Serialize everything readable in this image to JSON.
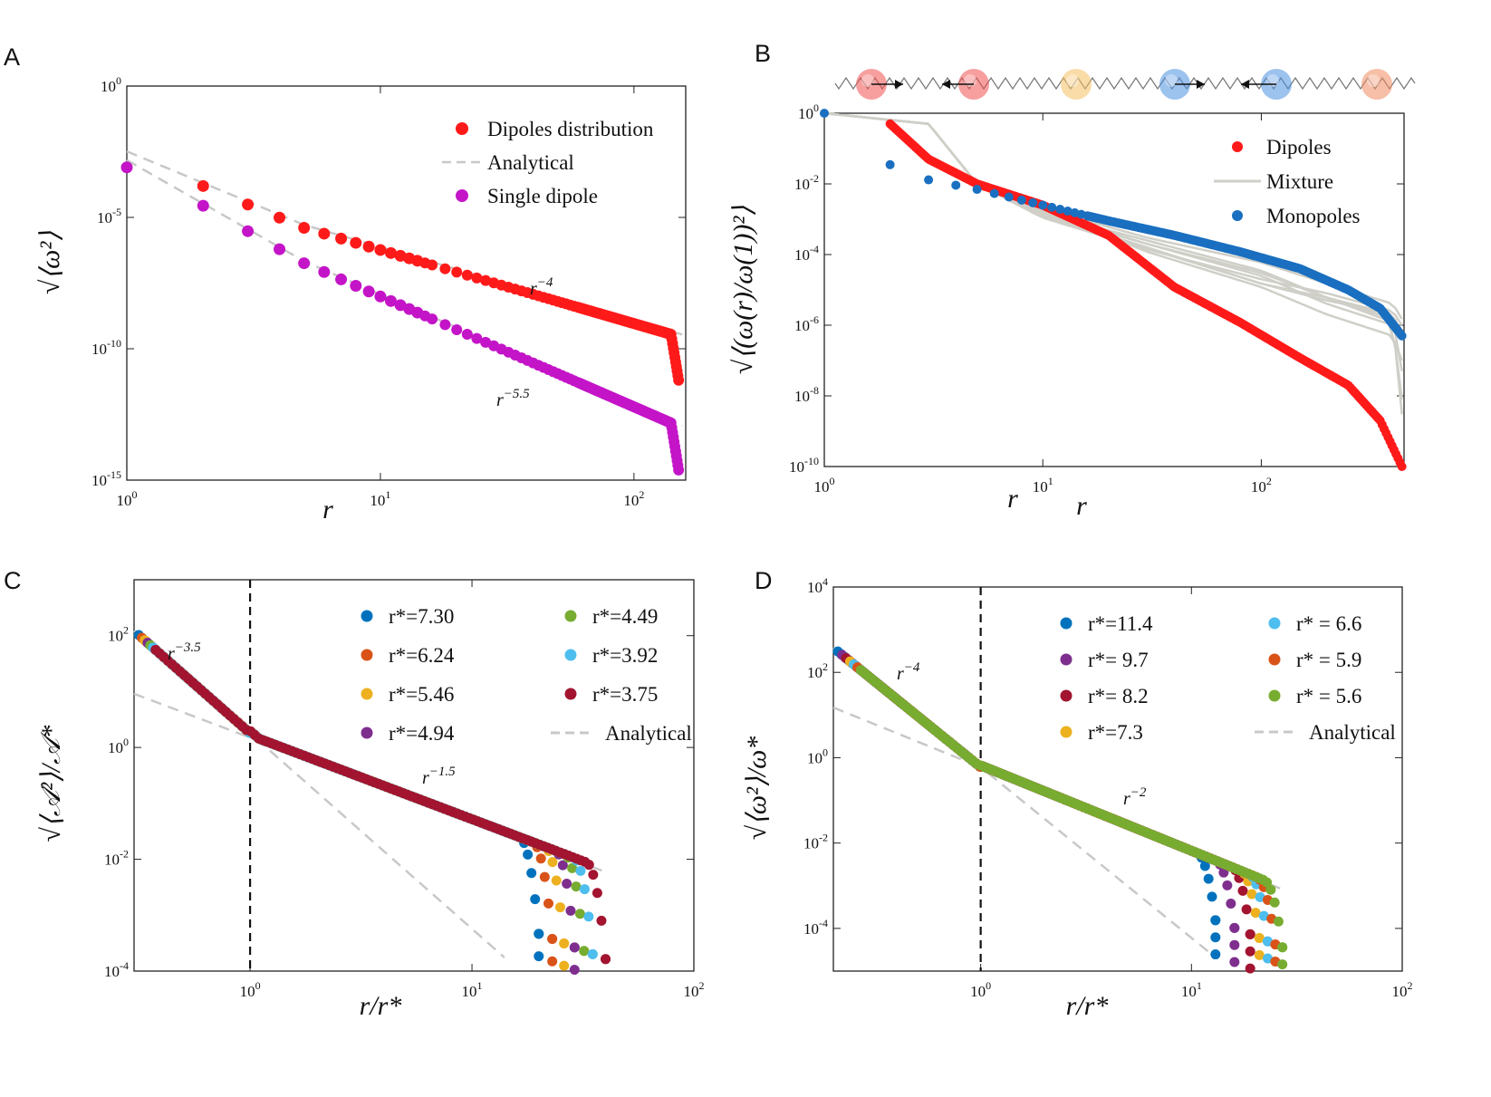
{
  "figure": {
    "panel_labels": [
      "A",
      "B",
      "C",
      "D"
    ]
  },
  "chart_data": [
    {
      "panel": "A",
      "type": "scatter",
      "title": "",
      "xlabel": "r",
      "ylabel": "√⟨ω²⟩",
      "xscale": "log",
      "yscale": "log",
      "xlim": [
        1,
        160
      ],
      "ylim": [
        1e-15,
        1
      ],
      "xticks": [
        1,
        10,
        100
      ],
      "xtick_labels": [
        "10",
        "10",
        "10"
      ],
      "xtick_exp": [
        "0",
        "1",
        "2"
      ],
      "yticks": [
        1e-15,
        1e-10,
        1e-05,
        1
      ],
      "ytick_labels": [
        "10",
        "10",
        "10",
        "10"
      ],
      "ytick_exp": [
        "-15",
        "-10",
        "-5",
        "0"
      ],
      "legend": [
        "Dipoles distribution",
        "Analytical",
        "Single dipole"
      ],
      "legend_position": "top-right",
      "annotations": [
        {
          "text": "r",
          "exp": "−4"
        },
        {
          "text": "r",
          "exp": "−5.5"
        }
      ],
      "colors": {
        "dipoles": "#ff1a1a",
        "single": "#c414c8",
        "analytical": "#c8c8c8"
      },
      "series": [
        {
          "name": "Dipoles distribution",
          "power": -4,
          "anchor_log": -2.5,
          "x_range": [
            2,
            150
          ],
          "tail_drop": 1.0
        },
        {
          "name": "Single dipole",
          "power": -5.5,
          "anchor_log": -3.1,
          "x_range": [
            2,
            150
          ],
          "tail_drop": 1.0
        },
        {
          "name": "first point",
          "x": 1,
          "y": 0.0008
        }
      ]
    },
    {
      "panel": "B",
      "type": "scatter",
      "title": "",
      "xlabel": "r",
      "ylabel": "√⟨(ω(r)/ω(1))²⟩",
      "xscale": "log",
      "yscale": "log",
      "xlim": [
        1,
        450
      ],
      "ylim": [
        1e-10,
        1
      ],
      "xticks": [
        1,
        10,
        100
      ],
      "xtick_labels": [
        "10",
        "10",
        "10"
      ],
      "xtick_exp": [
        "0",
        "1",
        "2"
      ],
      "yticks": [
        1e-10,
        1e-08,
        1e-06,
        0.0001,
        0.01,
        1
      ],
      "ytick_labels": [
        "10",
        "10",
        "10",
        "10",
        "10",
        "10"
      ],
      "ytick_exp": [
        "-10",
        "-8",
        "-6",
        "-4",
        "-2",
        "0"
      ],
      "legend": [
        "Dipoles",
        "Mixture",
        "Monopoles"
      ],
      "legend_position": "top-right",
      "colors": {
        "dipoles": "#ff1a1a",
        "mixture": "#cfcfc8",
        "monopoles": "#1a6fc0"
      },
      "series": [
        {
          "name": "Dipoles",
          "points": [
            [
              1,
              1
            ],
            [
              2,
              0.5
            ],
            [
              3,
              0.05
            ],
            [
              5,
              0.01
            ],
            [
              10,
              0.0025
            ],
            [
              20,
              0.00035
            ],
            [
              40,
              1.2e-05
            ],
            [
              80,
              1.2e-06
            ],
            [
              150,
              1.2e-07
            ],
            [
              250,
              2e-08
            ],
            [
              350,
              2e-09
            ],
            [
              440,
              1e-10
            ]
          ]
        },
        {
          "name": "Monopoles",
          "points": [
            [
              1,
              1
            ],
            [
              2,
              0.035
            ],
            [
              3,
              0.013
            ],
            [
              5,
              0.007
            ],
            [
              10,
              0.0025
            ],
            [
              20,
              0.0009
            ],
            [
              40,
              0.00035
            ],
            [
              80,
              0.00012
            ],
            [
              150,
              4e-05
            ],
            [
              250,
              1e-05
            ],
            [
              350,
              3e-06
            ],
            [
              440,
              5e-07
            ]
          ]
        },
        {
          "name": "Mixture",
          "curves": [
            [
              [
                1,
                1
              ],
              [
                3,
                0.5
              ],
              [
                5,
                0.01
              ],
              [
                10,
                0.0018
              ],
              [
                30,
                0.00012
              ],
              [
                100,
                1.2e-05
              ],
              [
                200,
                2e-06
              ],
              [
                400,
                5e-07
              ],
              [
                440,
                1e-07
              ]
            ],
            [
              [
                1,
                1
              ],
              [
                3,
                0.5
              ],
              [
                5,
                0.01
              ],
              [
                10,
                0.0016
              ],
              [
                30,
                0.0002
              ],
              [
                100,
                2.5e-05
              ],
              [
                200,
                4e-06
              ],
              [
                400,
                1e-06
              ],
              [
                440,
                8e-09
              ]
            ],
            [
              [
                1,
                1
              ],
              [
                3,
                0.5
              ],
              [
                5,
                0.01
              ],
              [
                10,
                0.0015
              ],
              [
                30,
                0.00025
              ],
              [
                100,
                3.5e-05
              ],
              [
                200,
                6e-06
              ],
              [
                400,
                1.5e-06
              ],
              [
                440,
                5e-08
              ]
            ],
            [
              [
                1,
                1
              ],
              [
                3,
                0.5
              ],
              [
                5,
                0.01
              ],
              [
                10,
                0.0013
              ],
              [
                30,
                0.00016
              ],
              [
                100,
                1.5e-05
              ],
              [
                200,
                5e-06
              ],
              [
                400,
                2e-06
              ],
              [
                440,
                4e-07
              ]
            ],
            [
              [
                1,
                1
              ],
              [
                3,
                0.5
              ],
              [
                5,
                0.01
              ],
              [
                10,
                0.0012
              ],
              [
                30,
                0.00015
              ],
              [
                100,
                1.5e-05
              ],
              [
                200,
                6e-06
              ],
              [
                400,
                1.2e-06
              ],
              [
                440,
                3e-09
              ]
            ],
            [
              [
                1,
                1
              ],
              [
                3,
                0.5
              ],
              [
                5,
                0.01
              ],
              [
                10,
                0.0011
              ],
              [
                30,
                0.00014
              ],
              [
                100,
                2e-05
              ],
              [
                200,
                8e-06
              ],
              [
                400,
                2.5e-06
              ],
              [
                440,
                1e-06
              ]
            ],
            [
              [
                1,
                1
              ],
              [
                3,
                0.5
              ],
              [
                5,
                0.01
              ],
              [
                10,
                0.0014
              ],
              [
                30,
                0.0002
              ],
              [
                100,
                3e-05
              ],
              [
                200,
                6e-06
              ],
              [
                400,
                2e-06
              ],
              [
                440,
                6e-07
              ]
            ],
            [
              [
                1,
                1
              ],
              [
                3,
                0.5
              ],
              [
                5,
                0.01
              ],
              [
                10,
                0.002
              ],
              [
                30,
                0.0003
              ],
              [
                100,
                6e-05
              ],
              [
                200,
                1.5e-05
              ],
              [
                400,
                4e-06
              ],
              [
                440,
                1.5e-06
              ]
            ]
          ]
        }
      ]
    },
    {
      "panel": "C",
      "type": "scatter",
      "title": "",
      "xlabel": "r/r*",
      "ylabel": "√⟨𝒜²⟩/𝒜*",
      "xscale": "log",
      "yscale": "log",
      "xlim": [
        0.3,
        100
      ],
      "ylim": [
        0.0001,
        1000
      ],
      "xticks": [
        1,
        10,
        100
      ],
      "xtick_labels": [
        "10",
        "10",
        "10"
      ],
      "xtick_exp": [
        "0",
        "1",
        "2"
      ],
      "yticks": [
        0.0001,
        0.01,
        1,
        100
      ],
      "ytick_labels": [
        "10",
        "10",
        "10",
        "10"
      ],
      "ytick_exp": [
        "-4",
        "-2",
        "0",
        "2"
      ],
      "vline": 1,
      "legend": [
        "r*=7.30",
        "r*=6.24",
        "r*=5.46",
        "r*=4.94",
        "r*=4.49",
        "r*=3.92",
        "r*=3.75",
        "Analytical"
      ],
      "legend_position": "top-right",
      "annotations": [
        {
          "text": "r",
          "exp": "−3.5"
        },
        {
          "text": "r",
          "exp": "−1.5"
        }
      ],
      "series": [
        {
          "name": "r*=7.30",
          "color": "#0072bd",
          "cutoff": 20
        },
        {
          "name": "r*=6.24",
          "color": "#d95319",
          "cutoff": 23
        },
        {
          "name": "r*=5.46",
          "color": "#edb120",
          "cutoff": 26
        },
        {
          "name": "r*=4.94",
          "color": "#7e2f8e",
          "cutoff": 29
        },
        {
          "name": "r*=4.49",
          "color": "#77ac30",
          "cutoff": 32
        },
        {
          "name": "r*=3.92",
          "color": "#4dbeee",
          "cutoff": 35
        },
        {
          "name": "r*=3.75",
          "color": "#a2142f",
          "cutoff": 40
        }
      ],
      "inner_power": -3.5,
      "outer_power": -1.5
    },
    {
      "panel": "D",
      "type": "scatter",
      "title": "",
      "xlabel": "r/r*",
      "ylabel": "√⟨ω²⟩/ω*",
      "xscale": "log",
      "yscale": "log",
      "xlim": [
        0.2,
        100
      ],
      "ylim": [
        1e-05,
        10000
      ],
      "xticks": [
        1,
        10,
        100
      ],
      "xtick_labels": [
        "10",
        "10",
        "10"
      ],
      "xtick_exp": [
        "0",
        "1",
        "2"
      ],
      "yticks": [
        0.0001,
        0.01,
        1,
        100,
        10000
      ],
      "ytick_labels": [
        "10",
        "10",
        "10",
        "10",
        "10"
      ],
      "ytick_exp": [
        "-4",
        "-2",
        "0",
        "2",
        "4"
      ],
      "vline": 1,
      "legend": [
        "r*=11.4",
        "r*= 9.7",
        "r*= 8.2",
        "r*=7.3",
        "r* = 6.6",
        "r* = 5.9",
        "r* = 5.6",
        "Analytical"
      ],
      "legend_position": "top-right",
      "annotations": [
        {
          "text": "r",
          "exp": "−4"
        },
        {
          "text": "r",
          "exp": "−2"
        }
      ],
      "series": [
        {
          "name": "r*=11.4",
          "color": "#0072bd",
          "cutoff": 13
        },
        {
          "name": "r*= 9.7",
          "color": "#7e2f8e",
          "cutoff": 16
        },
        {
          "name": "r*= 8.2",
          "color": "#a2142f",
          "cutoff": 19
        },
        {
          "name": "r*=7.3",
          "color": "#edb120",
          "cutoff": 21
        },
        {
          "name": "r* = 6.6",
          "color": "#4dbeee",
          "cutoff": 23
        },
        {
          "name": "r* = 5.9",
          "color": "#d95319",
          "cutoff": 25
        },
        {
          "name": "r* = 5.6",
          "color": "#77ac30",
          "cutoff": 27
        }
      ],
      "inner_power": -4,
      "outer_power": -2
    }
  ]
}
